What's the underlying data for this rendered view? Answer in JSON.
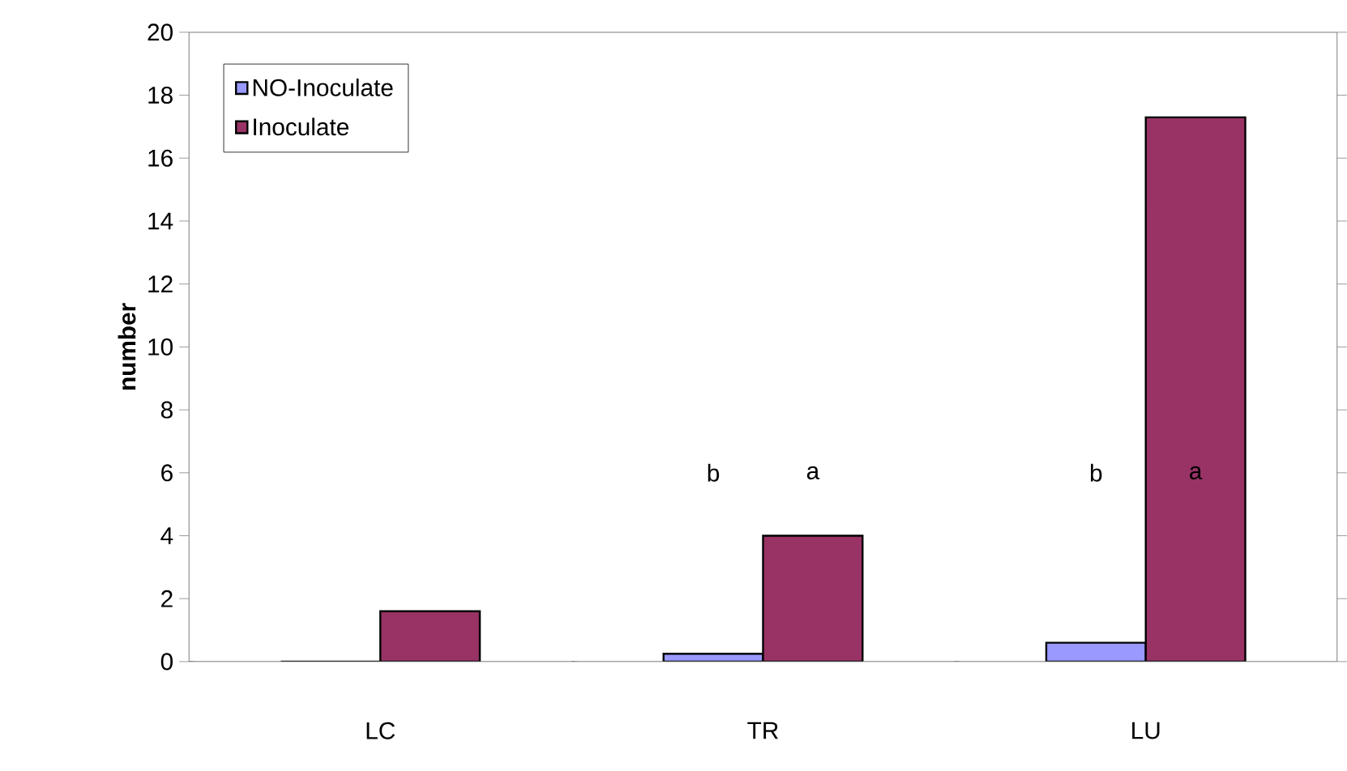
{
  "chart_data": {
    "type": "bar",
    "ylabel": "number",
    "categories": [
      "LC",
      "TR",
      "LU"
    ],
    "series": [
      {
        "name": "NO-Inoculate",
        "color": "#9999ff",
        "values": [
          0,
          0.25,
          0.6
        ]
      },
      {
        "name": "Inoculate",
        "color": "#993366",
        "values": [
          1.6,
          4.0,
          17.3
        ]
      }
    ],
    "ylim": [
      0,
      20
    ],
    "yticks": [
      0,
      2,
      4,
      6,
      8,
      10,
      12,
      14,
      16,
      18,
      20
    ],
    "legend": "top left",
    "annotations": [
      "b",
      "a",
      "b",
      "a"
    ]
  }
}
